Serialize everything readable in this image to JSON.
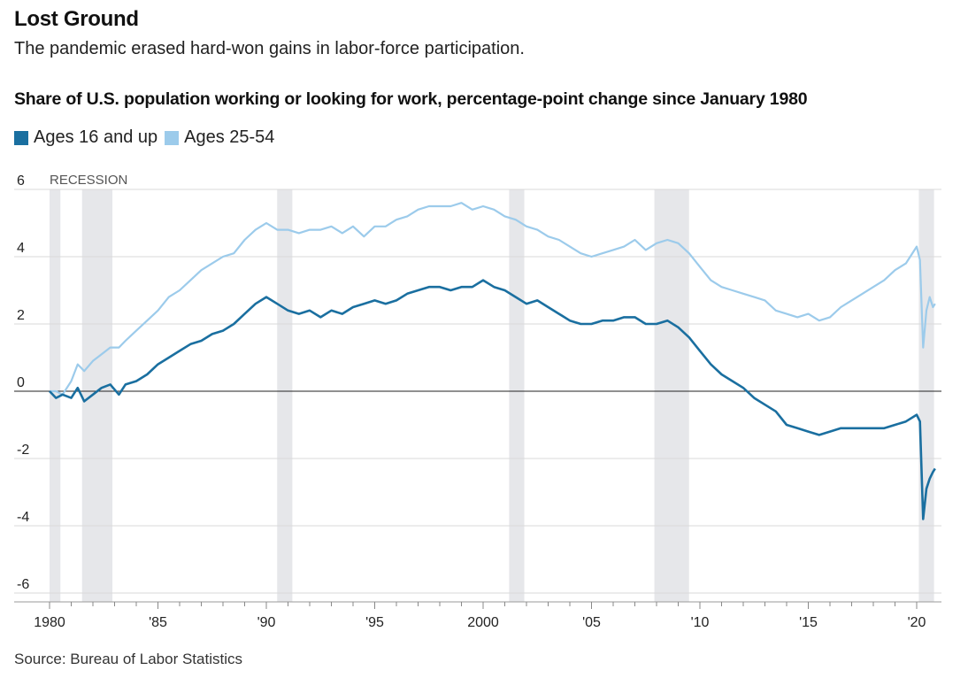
{
  "header": {
    "title": "Lost Ground",
    "subtitle": "The pandemic erased hard-won gains in labor-force participation."
  },
  "source": "Source: Bureau of Labor Statistics",
  "colors": {
    "series_16up": "#1a6fa0",
    "series_25_54": "#9ccbeb",
    "recession": "#e6e7ea",
    "grid": "#d9d9d9",
    "zero": "#222222"
  },
  "chart_data": {
    "type": "line",
    "title": "Share of U.S. population working or looking for work, percentage-point change since January 1980",
    "recession_label": "RECESSION",
    "legend_placement": "top-left",
    "grid": true,
    "xlim": [
      1980.0,
      2020.9
    ],
    "ylim": [
      -6.5,
      6
    ],
    "y_ticks": [
      {
        "value": 6,
        "label": "6"
      },
      {
        "value": 4,
        "label": "4"
      },
      {
        "value": 2,
        "label": "2"
      },
      {
        "value": 0,
        "label": "0"
      },
      {
        "value": -2,
        "label": "-2"
      },
      {
        "value": -4,
        "label": "-4"
      },
      {
        "value": -6,
        "label": "-6"
      }
    ],
    "x_ticks": [
      {
        "value": 1980,
        "label": "1980"
      },
      {
        "value": 1985,
        "label": "'85"
      },
      {
        "value": 1990,
        "label": "'90"
      },
      {
        "value": 1995,
        "label": "'95"
      },
      {
        "value": 2000,
        "label": "2000"
      },
      {
        "value": 2005,
        "label": "'05"
      },
      {
        "value": 2010,
        "label": "'10"
      },
      {
        "value": 2015,
        "label": "'15"
      },
      {
        "value": 2020,
        "label": "'20"
      }
    ],
    "recessions": [
      [
        1980.0,
        1980.5
      ],
      [
        1981.5,
        1982.9
      ],
      [
        1990.5,
        1991.2
      ],
      [
        2001.2,
        2001.9
      ],
      [
        2007.9,
        2009.5
      ],
      [
        2020.1,
        2020.8
      ]
    ],
    "series": [
      {
        "name": "Ages 16 and up",
        "color": "#1a6fa0",
        "points": [
          [
            1980.0,
            0.0
          ],
          [
            1980.3,
            -0.2
          ],
          [
            1980.6,
            -0.1
          ],
          [
            1981.0,
            -0.2
          ],
          [
            1981.3,
            0.1
          ],
          [
            1981.6,
            -0.3
          ],
          [
            1982.0,
            -0.1
          ],
          [
            1982.4,
            0.1
          ],
          [
            1982.8,
            0.2
          ],
          [
            1983.2,
            -0.1
          ],
          [
            1983.5,
            0.2
          ],
          [
            1984.0,
            0.3
          ],
          [
            1984.5,
            0.5
          ],
          [
            1985.0,
            0.8
          ],
          [
            1985.5,
            1.0
          ],
          [
            1986.0,
            1.2
          ],
          [
            1986.5,
            1.4
          ],
          [
            1987.0,
            1.5
          ],
          [
            1987.5,
            1.7
          ],
          [
            1988.0,
            1.8
          ],
          [
            1988.5,
            2.0
          ],
          [
            1989.0,
            2.3
          ],
          [
            1989.5,
            2.6
          ],
          [
            1990.0,
            2.8
          ],
          [
            1990.5,
            2.6
          ],
          [
            1991.0,
            2.4
          ],
          [
            1991.5,
            2.3
          ],
          [
            1992.0,
            2.4
          ],
          [
            1992.5,
            2.2
          ],
          [
            1993.0,
            2.4
          ],
          [
            1993.5,
            2.3
          ],
          [
            1994.0,
            2.5
          ],
          [
            1994.5,
            2.6
          ],
          [
            1995.0,
            2.7
          ],
          [
            1995.5,
            2.6
          ],
          [
            1996.0,
            2.7
          ],
          [
            1996.5,
            2.9
          ],
          [
            1997.0,
            3.0
          ],
          [
            1997.5,
            3.1
          ],
          [
            1998.0,
            3.1
          ],
          [
            1998.5,
            3.0
          ],
          [
            1999.0,
            3.1
          ],
          [
            1999.5,
            3.1
          ],
          [
            2000.0,
            3.3
          ],
          [
            2000.5,
            3.1
          ],
          [
            2001.0,
            3.0
          ],
          [
            2001.5,
            2.8
          ],
          [
            2002.0,
            2.6
          ],
          [
            2002.5,
            2.7
          ],
          [
            2003.0,
            2.5
          ],
          [
            2003.5,
            2.3
          ],
          [
            2004.0,
            2.1
          ],
          [
            2004.5,
            2.0
          ],
          [
            2005.0,
            2.0
          ],
          [
            2005.5,
            2.1
          ],
          [
            2006.0,
            2.1
          ],
          [
            2006.5,
            2.2
          ],
          [
            2007.0,
            2.2
          ],
          [
            2007.5,
            2.0
          ],
          [
            2008.0,
            2.0
          ],
          [
            2008.5,
            2.1
          ],
          [
            2009.0,
            1.9
          ],
          [
            2009.5,
            1.6
          ],
          [
            2010.0,
            1.2
          ],
          [
            2010.5,
            0.8
          ],
          [
            2011.0,
            0.5
          ],
          [
            2011.5,
            0.3
          ],
          [
            2012.0,
            0.1
          ],
          [
            2012.5,
            -0.2
          ],
          [
            2013.0,
            -0.4
          ],
          [
            2013.5,
            -0.6
          ],
          [
            2014.0,
            -1.0
          ],
          [
            2014.5,
            -1.1
          ],
          [
            2015.0,
            -1.2
          ],
          [
            2015.5,
            -1.3
          ],
          [
            2016.0,
            -1.2
          ],
          [
            2016.5,
            -1.1
          ],
          [
            2017.0,
            -1.1
          ],
          [
            2017.5,
            -1.1
          ],
          [
            2018.0,
            -1.1
          ],
          [
            2018.5,
            -1.1
          ],
          [
            2019.0,
            -1.0
          ],
          [
            2019.5,
            -0.9
          ],
          [
            2020.0,
            -0.7
          ],
          [
            2020.15,
            -0.9
          ],
          [
            2020.3,
            -3.8
          ],
          [
            2020.45,
            -2.9
          ],
          [
            2020.6,
            -2.6
          ],
          [
            2020.75,
            -2.4
          ],
          [
            2020.85,
            -2.3
          ]
        ]
      },
      {
        "name": "Ages 25-54",
        "color": "#9ccbeb",
        "points": [
          [
            1980.0,
            0.0
          ],
          [
            1980.3,
            0.0
          ],
          [
            1980.6,
            -0.1
          ],
          [
            1981.0,
            0.3
          ],
          [
            1981.3,
            0.8
          ],
          [
            1981.6,
            0.6
          ],
          [
            1982.0,
            0.9
          ],
          [
            1982.4,
            1.1
          ],
          [
            1982.8,
            1.3
          ],
          [
            1983.2,
            1.3
          ],
          [
            1983.5,
            1.5
          ],
          [
            1984.0,
            1.8
          ],
          [
            1984.5,
            2.1
          ],
          [
            1985.0,
            2.4
          ],
          [
            1985.5,
            2.8
          ],
          [
            1986.0,
            3.0
          ],
          [
            1986.5,
            3.3
          ],
          [
            1987.0,
            3.6
          ],
          [
            1987.5,
            3.8
          ],
          [
            1988.0,
            4.0
          ],
          [
            1988.5,
            4.1
          ],
          [
            1989.0,
            4.5
          ],
          [
            1989.5,
            4.8
          ],
          [
            1990.0,
            5.0
          ],
          [
            1990.5,
            4.8
          ],
          [
            1991.0,
            4.8
          ],
          [
            1991.5,
            4.7
          ],
          [
            1992.0,
            4.8
          ],
          [
            1992.5,
            4.8
          ],
          [
            1993.0,
            4.9
          ],
          [
            1993.5,
            4.7
          ],
          [
            1994.0,
            4.9
          ],
          [
            1994.5,
            4.6
          ],
          [
            1995.0,
            4.9
          ],
          [
            1995.5,
            4.9
          ],
          [
            1996.0,
            5.1
          ],
          [
            1996.5,
            5.2
          ],
          [
            1997.0,
            5.4
          ],
          [
            1997.5,
            5.5
          ],
          [
            1998.0,
            5.5
          ],
          [
            1998.5,
            5.5
          ],
          [
            1999.0,
            5.6
          ],
          [
            1999.5,
            5.4
          ],
          [
            2000.0,
            5.5
          ],
          [
            2000.5,
            5.4
          ],
          [
            2001.0,
            5.2
          ],
          [
            2001.5,
            5.1
          ],
          [
            2002.0,
            4.9
          ],
          [
            2002.5,
            4.8
          ],
          [
            2003.0,
            4.6
          ],
          [
            2003.5,
            4.5
          ],
          [
            2004.0,
            4.3
          ],
          [
            2004.5,
            4.1
          ],
          [
            2005.0,
            4.0
          ],
          [
            2005.5,
            4.1
          ],
          [
            2006.0,
            4.2
          ],
          [
            2006.5,
            4.3
          ],
          [
            2007.0,
            4.5
          ],
          [
            2007.5,
            4.2
          ],
          [
            2008.0,
            4.4
          ],
          [
            2008.5,
            4.5
          ],
          [
            2009.0,
            4.4
          ],
          [
            2009.5,
            4.1
          ],
          [
            2010.0,
            3.7
          ],
          [
            2010.5,
            3.3
          ],
          [
            2011.0,
            3.1
          ],
          [
            2011.5,
            3.0
          ],
          [
            2012.0,
            2.9
          ],
          [
            2012.5,
            2.8
          ],
          [
            2013.0,
            2.7
          ],
          [
            2013.5,
            2.4
          ],
          [
            2014.0,
            2.3
          ],
          [
            2014.5,
            2.2
          ],
          [
            2015.0,
            2.3
          ],
          [
            2015.5,
            2.1
          ],
          [
            2016.0,
            2.2
          ],
          [
            2016.5,
            2.5
          ],
          [
            2017.0,
            2.7
          ],
          [
            2017.5,
            2.9
          ],
          [
            2018.0,
            3.1
          ],
          [
            2018.5,
            3.3
          ],
          [
            2019.0,
            3.6
          ],
          [
            2019.5,
            3.8
          ],
          [
            2020.0,
            4.3
          ],
          [
            2020.15,
            3.9
          ],
          [
            2020.3,
            1.3
          ],
          [
            2020.45,
            2.4
          ],
          [
            2020.6,
            2.8
          ],
          [
            2020.75,
            2.5
          ],
          [
            2020.85,
            2.6
          ]
        ]
      }
    ]
  }
}
